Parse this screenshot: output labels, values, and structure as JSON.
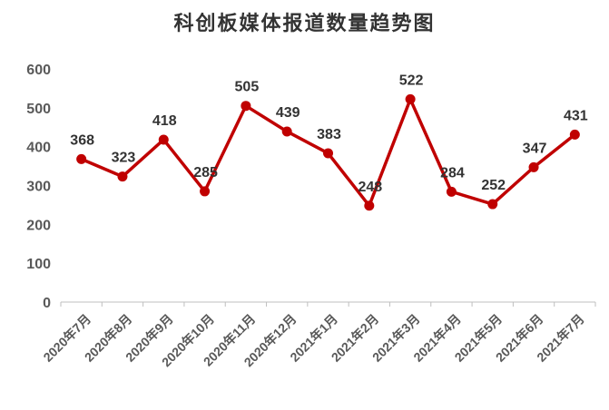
{
  "chart_data": {
    "type": "line",
    "title": "科创板媒体报道数量趋势图",
    "xlabel": "",
    "ylabel": "",
    "categories": [
      "2020年7月",
      "2020年8月",
      "2020年9月",
      "2020年10月",
      "2020年11月",
      "2020年12月",
      "2021年1月",
      "2021年2月",
      "2021年3月",
      "2021年4月",
      "2021年5月",
      "2021年6月",
      "2021年7月"
    ],
    "series": [
      {
        "values": [
          368,
          323,
          418,
          285,
          505,
          439,
          383,
          248,
          522,
          284,
          252,
          347,
          431
        ]
      }
    ],
    "data_labels": [
      "368",
      "323",
      "418",
      "285",
      "505",
      "439",
      "383",
      "248",
      "522",
      "284",
      "252",
      "347",
      "431"
    ],
    "ylim": [
      0,
      600
    ],
    "yticks": [
      0,
      100,
      200,
      300,
      400,
      500,
      600
    ],
    "ytick_labels": [
      "0",
      "100",
      "200",
      "300",
      "400",
      "500",
      "600"
    ],
    "grid": false,
    "legend": "none",
    "line_color": "#c00000"
  }
}
